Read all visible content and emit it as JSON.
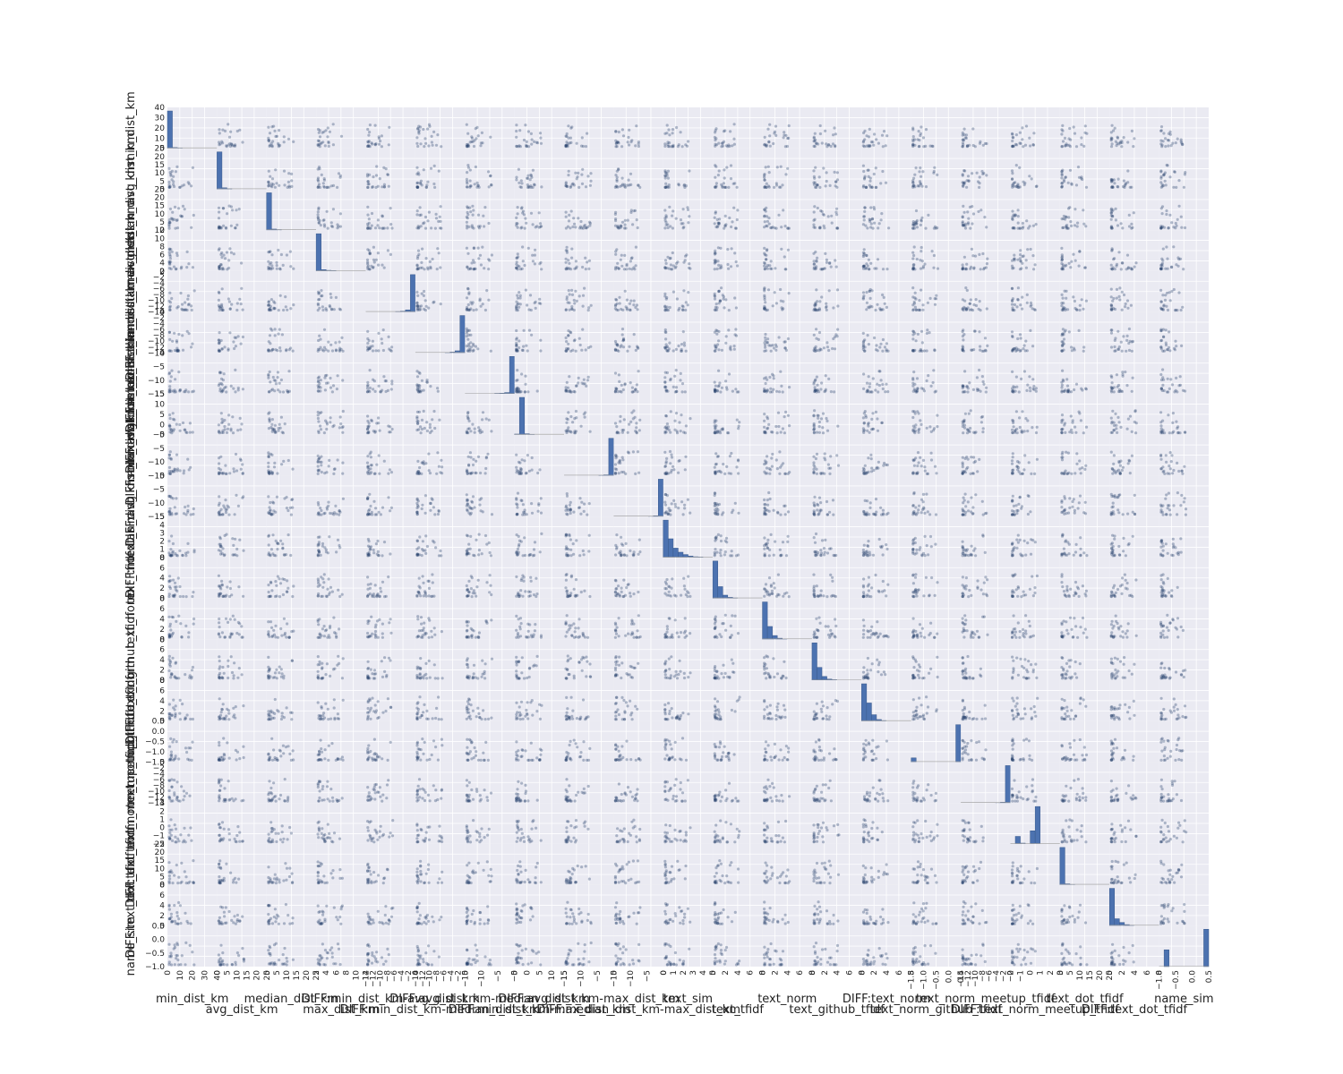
{
  "chart_data": {
    "type": "scatter",
    "subtype": "scatter-matrix",
    "diagonal": "histogram",
    "grid": true,
    "colors": {
      "panel_bg": "#EAEAF2",
      "grid": "#FFFFFF",
      "marker": "#2B4570",
      "hist_fill": "#4C72B0",
      "hist_edge": "#3A5A8C"
    },
    "variables": [
      {
        "name": "min_dist_km",
        "range": [
          0,
          40
        ],
        "ticks": [
          "0",
          "10",
          "20",
          "30",
          "40"
        ],
        "hist": [
          38,
          0.8,
          0.3,
          0.1,
          0,
          0,
          0,
          0,
          0,
          0.1
        ]
      },
      {
        "name": "avg_dist_km",
        "range": [
          0,
          25
        ],
        "ticks": [
          "0",
          "5",
          "10",
          "15",
          "20",
          "25"
        ],
        "hist": [
          21,
          0.8,
          0.3,
          0.1,
          0.1,
          0,
          0,
          0,
          0,
          0
        ]
      },
      {
        "name": "median_dist_km",
        "range": [
          0,
          25
        ],
        "ticks": [
          "0",
          "5",
          "10",
          "15",
          "20",
          "25"
        ],
        "hist": [
          21,
          0.6,
          0.3,
          0.1,
          0,
          0,
          0,
          0,
          0,
          0
        ]
      },
      {
        "name": "max_dist_km",
        "range": [
          -2,
          12
        ],
        "ticks": [
          "2",
          "4",
          "6",
          "8",
          "10",
          "12"
        ],
        "hist": [
          10.5,
          0.4,
          0.2,
          0.1,
          0,
          0,
          0,
          0,
          0,
          0
        ]
      },
      {
        "name": "DIFF:min_dist_km-avg_dist_km",
        "range": [
          -14,
          0
        ],
        "ticks": [
          "−14",
          "−12",
          "−10",
          "−8",
          "−6",
          "−4",
          "−2",
          "0"
        ],
        "hist": [
          0,
          0,
          0,
          0,
          0,
          0,
          0.1,
          0.2,
          0.5,
          9
        ]
      },
      {
        "name": "DIFF:min_dist_km-median_dist_km",
        "range": [
          -14,
          0
        ],
        "ticks": [
          "−14",
          "−12",
          "−10",
          "−8",
          "−6",
          "−4",
          "−2",
          "0"
        ],
        "hist": [
          0,
          0,
          0,
          0,
          0,
          0,
          0.1,
          0.2,
          0.5,
          9
        ]
      },
      {
        "name": "DIFF:avg_dist_km-median_dist_km",
        "range": [
          -17,
          0
        ],
        "ticks": [
          "−15",
          "−10",
          "−5",
          "0"
        ],
        "hist": [
          0,
          0,
          0,
          0,
          0,
          0,
          0.1,
          0.2,
          0.4,
          12
        ]
      },
      {
        "name": "DIFF:min_dist_km-max_dist_km",
        "range": [
          -5,
          15
        ],
        "ticks": [
          "−5",
          "0",
          "5",
          "10",
          "15"
        ],
        "hist": [
          0.2,
          11.5,
          0.3,
          0.1,
          0,
          0,
          0,
          0,
          0,
          0
        ]
      },
      {
        "name": "DIFF:avg_dist_km-max_dist_km",
        "range": [
          -17,
          0
        ],
        "ticks": [
          "−15",
          "−10",
          "−5",
          "0"
        ],
        "hist": [
          0,
          0,
          0,
          0,
          0,
          0,
          0,
          0.1,
          0.3,
          14
        ]
      },
      {
        "name": "DIFF:median_dist_km-max_dist_km",
        "range": [
          -17,
          0
        ],
        "ticks": [
          "−15",
          "−10",
          "−5",
          "0"
        ],
        "hist": [
          0,
          0,
          0,
          0,
          0,
          0,
          0,
          0.1,
          0.3,
          14
        ]
      },
      {
        "name": "text_sim",
        "range": [
          0,
          5
        ],
        "ticks": [
          "0",
          "1",
          "2",
          "3",
          "4",
          "5"
        ],
        "hist": [
          3.2,
          1.6,
          0.8,
          0.45,
          0.25,
          0.12,
          0.06,
          0.03,
          0.01,
          0.01
        ]
      },
      {
        "name": "text_tfidf",
        "range": [
          0,
          8
        ],
        "ticks": [
          "0",
          "2",
          "4",
          "6",
          "8"
        ],
        "hist": [
          7,
          2.2,
          0.6,
          0.2,
          0.08,
          0.03,
          0.01,
          0,
          0,
          0
        ]
      },
      {
        "name": "text_norm",
        "range": [
          0,
          8
        ],
        "ticks": [
          "0",
          "2",
          "4",
          "6",
          "8"
        ],
        "hist": [
          7,
          2.4,
          0.7,
          0.2,
          0.08,
          0.02,
          0.01,
          0,
          0,
          0
        ]
      },
      {
        "name": "text_github_tfidf",
        "range": [
          0,
          8
        ],
        "ticks": [
          "0",
          "2",
          "4",
          "6",
          "8"
        ],
        "hist": [
          7,
          2.4,
          0.7,
          0.2,
          0.08,
          0.02,
          0.01,
          0,
          0,
          0
        ]
      },
      {
        "name": "DIFF:text_norm",
        "range": [
          0,
          8
        ],
        "ticks": [
          "0",
          "2",
          "4",
          "6",
          "8"
        ],
        "hist": [
          7,
          3.4,
          1.2,
          0.3,
          0.1,
          0.03,
          0.01,
          0,
          0,
          0
        ]
      },
      {
        "name": "text_norm_github_tfidf",
        "range": [
          -1.5,
          1
        ],
        "ticks": [
          "−1.5",
          "−1.0",
          "−0.5",
          "0.0",
          "0.5"
        ],
        "hist": [
          0.1,
          0,
          0,
          0,
          0,
          0,
          0,
          0,
          0,
          0.9
        ]
      },
      {
        "name": "text_norm_meetup_tfidf",
        "range": [
          -14,
          0
        ],
        "ticks": [
          "−14",
          "−12",
          "−10",
          "−8",
          "−6",
          "−4",
          "−2",
          "0"
        ],
        "hist": [
          0,
          0,
          0,
          0,
          0,
          0,
          0,
          0.05,
          0.2,
          10
        ]
      },
      {
        "name": "DIFF:text_norm_meetup_tfidf",
        "range": [
          -2,
          3
        ],
        "ticks": [
          "−2",
          "−1",
          "0",
          "1",
          "2",
          "3"
        ],
        "hist": [
          0,
          0.2,
          0.02,
          0,
          0.35,
          1.0,
          0,
          0,
          0,
          0
        ]
      },
      {
        "name": "text_dot_tfidf",
        "range": [
          0,
          25
        ],
        "ticks": [
          "0",
          "5",
          "10",
          "15",
          "20",
          "25"
        ],
        "hist": [
          24,
          0.6,
          0.2,
          0.05,
          0.02,
          0,
          0,
          0,
          0,
          0
        ]
      },
      {
        "name": "DIFF:text_dot_tfidf",
        "range": [
          0,
          8
        ],
        "ticks": [
          "0",
          "2",
          "4",
          "6",
          "8"
        ],
        "hist": [
          7,
          1.3,
          0.6,
          0.2,
          0.1,
          0.03,
          0.01,
          0,
          0,
          0
        ]
      },
      {
        "name": "name_sim",
        "range": [
          -1.2,
          0.8
        ],
        "ticks": [
          "−1.0",
          "−0.5",
          "0.0",
          "0.5"
        ],
        "hist": [
          0,
          0.45,
          0,
          0,
          0,
          0,
          0,
          0,
          0,
          1.0
        ]
      }
    ]
  }
}
